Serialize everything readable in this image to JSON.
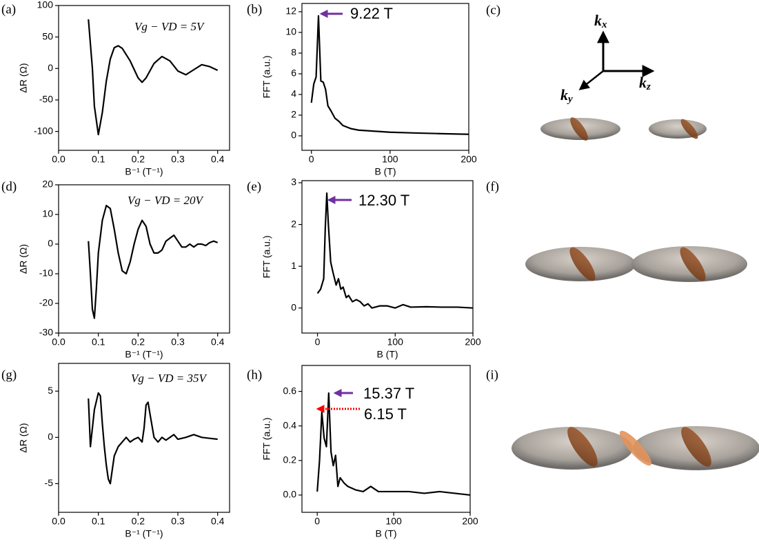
{
  "chart_data": [
    {
      "type": "line",
      "panel_label": "(a)",
      "x_label": "B⁻¹ (T⁻¹)",
      "y_label": "ΔR (Ω)",
      "annotations": [
        {
          "text": "Vg − VD = 5V",
          "color": "#000000"
        }
      ],
      "x": [
        0.075,
        0.085,
        0.09,
        0.1,
        0.11,
        0.12,
        0.13,
        0.14,
        0.15,
        0.16,
        0.18,
        0.2,
        0.21,
        0.22,
        0.24,
        0.26,
        0.28,
        0.3,
        0.32,
        0.34,
        0.36,
        0.38,
        0.4
      ],
      "series": [
        {
          "color": "#000000",
          "values": [
            78,
            0,
            -60,
            -105,
            -70,
            -20,
            15,
            33,
            36,
            32,
            12,
            -15,
            -22,
            -15,
            8,
            19,
            12,
            -4,
            -10,
            -2,
            6,
            3,
            -3
          ]
        }
      ],
      "xlim": [
        0,
        0.43
      ],
      "ylim": [
        -130,
        100
      ],
      "xticks": [
        {
          "value": 0,
          "label": "0.0"
        },
        0.1,
        0.2,
        0.3,
        0.4
      ],
      "yticks": [
        -100,
        -50,
        0,
        50,
        100
      ]
    },
    {
      "type": "line",
      "panel_label": "(b)",
      "x_label": "B (T)",
      "y_label": "FFT (a.u.)",
      "annotations": [
        {
          "text": "9.22 T",
          "color": "#000000"
        }
      ],
      "x": [
        0,
        3,
        6,
        9,
        12,
        15,
        18,
        21,
        25,
        30,
        35,
        40,
        50,
        60,
        80,
        100,
        130,
        160,
        200
      ],
      "series": [
        {
          "color": "#000000",
          "values": [
            3.2,
            5,
            5.7,
            11.6,
            5.3,
            5.2,
            4.5,
            2.9,
            2.4,
            1.7,
            1.4,
            1.0,
            0.7,
            0.55,
            0.45,
            0.35,
            0.28,
            0.22,
            0.15
          ]
        }
      ],
      "xlim": [
        -12,
        200
      ],
      "ylim": [
        -1.4,
        12.8
      ],
      "xticks": [
        0,
        100,
        200
      ],
      "yticks": [
        0,
        2,
        4,
        6,
        8,
        10,
        12
      ]
    },
    {
      "type": "line",
      "panel_label": "(d)",
      "x_label": "B⁻¹ (T⁻¹)",
      "y_label": "ΔR (Ω)",
      "annotations": [
        {
          "text": "Vg − VD = 20V",
          "color": "#000000"
        }
      ],
      "x": [
        0.075,
        0.08,
        0.085,
        0.09,
        0.095,
        0.1,
        0.11,
        0.12,
        0.13,
        0.14,
        0.15,
        0.16,
        0.17,
        0.18,
        0.19,
        0.2,
        0.21,
        0.22,
        0.23,
        0.24,
        0.25,
        0.26,
        0.27,
        0.28,
        0.29,
        0.3,
        0.31,
        0.32,
        0.33,
        0.34,
        0.35,
        0.36,
        0.37,
        0.38,
        0.39,
        0.4
      ],
      "series": [
        {
          "color": "#000000",
          "values": [
            1,
            -10,
            -22,
            -25,
            -15,
            -3,
            8,
            13,
            12,
            5,
            -3,
            -9,
            -10,
            -6,
            0,
            5,
            8,
            6,
            0,
            -3,
            -3,
            -2,
            1,
            2,
            3,
            1,
            -1,
            -1,
            0,
            -1,
            0,
            0,
            -0.5,
            0.5,
            1,
            0.5
          ]
        }
      ],
      "xlim": [
        0,
        0.43
      ],
      "ylim": [
        -30,
        20
      ],
      "xticks": [
        {
          "value": 0,
          "label": "0.0"
        },
        0.1,
        0.2,
        0.3,
        0.4
      ],
      "yticks": [
        -30,
        -20,
        -10,
        0,
        10,
        20
      ]
    },
    {
      "type": "line",
      "panel_label": "(e)",
      "x_label": "B (T)",
      "y_label": "FFT (a.u.)",
      "annotations": [
        {
          "text": "12.30 T",
          "color": "#000000"
        }
      ],
      "x": [
        0,
        4,
        8,
        10,
        12,
        14,
        17,
        20,
        24,
        27,
        30,
        33,
        37,
        40,
        45,
        50,
        55,
        60,
        65,
        70,
        80,
        90,
        100,
        110,
        120,
        140,
        160,
        180,
        200
      ],
      "series": [
        {
          "color": "#000000",
          "values": [
            0.35,
            0.45,
            0.7,
            1.9,
            2.75,
            2.0,
            1.1,
            0.85,
            0.55,
            0.7,
            0.45,
            0.5,
            0.25,
            0.3,
            0.15,
            0.2,
            0.15,
            0.05,
            0.1,
            0.0,
            0.05,
            0.05,
            0.0,
            0.08,
            0.02,
            0.03,
            0.02,
            0.02,
            0.0
          ]
        }
      ],
      "xlim": [
        -20,
        200
      ],
      "ylim": [
        -0.6,
        3.05
      ],
      "xticks": [
        0,
        100,
        200
      ],
      "yticks": [
        0,
        1,
        2,
        3
      ]
    },
    {
      "type": "line",
      "panel_label": "(g)",
      "x_label": "B⁻¹ (T⁻¹)",
      "y_label": "ΔR (Ω)",
      "annotations": [
        {
          "text": "Vg − VD = 35V",
          "color": "#000000"
        }
      ],
      "x": [
        0.075,
        0.08,
        0.085,
        0.09,
        0.1,
        0.105,
        0.11,
        0.115,
        0.12,
        0.125,
        0.13,
        0.135,
        0.14,
        0.15,
        0.16,
        0.17,
        0.18,
        0.19,
        0.2,
        0.21,
        0.215,
        0.22,
        0.225,
        0.23,
        0.24,
        0.25,
        0.26,
        0.27,
        0.28,
        0.29,
        0.3,
        0.32,
        0.34,
        0.36,
        0.38,
        0.4
      ],
      "series": [
        {
          "color": "#000000",
          "values": [
            4.2,
            -1,
            1,
            3,
            4.8,
            4.5,
            1.5,
            -1,
            -3,
            -4.5,
            -5,
            -3.5,
            -2,
            -1,
            -0.5,
            0,
            -0.5,
            -0.2,
            0,
            -0.5,
            1,
            3.5,
            3.8,
            2.5,
            0,
            -0.5,
            0,
            -0.3,
            0,
            0.3,
            -0.2,
            0,
            0.3,
            0,
            -0.1,
            -0.2
          ]
        }
      ],
      "xlim": [
        0,
        0.43
      ],
      "ylim": [
        -8.1,
        8
      ],
      "xticks": [
        {
          "value": 0,
          "label": "0.0"
        },
        0.1,
        0.2,
        0.3,
        0.4
      ],
      "yticks": [
        -5,
        0,
        5
      ]
    },
    {
      "type": "line",
      "panel_label": "(h)",
      "x_label": "B (T)",
      "y_label": "FFT (a.u.)",
      "annotations": [
        {
          "text": "15.37 T",
          "color": "#000000"
        },
        {
          "text": "6.15 T",
          "color": "#ff0000"
        }
      ],
      "x": [
        0,
        3,
        6,
        9,
        12,
        15,
        18,
        21,
        24,
        27,
        30,
        35,
        40,
        45,
        50,
        60,
        70,
        80,
        100,
        120,
        140,
        160,
        180,
        200
      ],
      "series": [
        {
          "color": "#000000",
          "values": [
            0.02,
            0.2,
            0.48,
            0.33,
            0.28,
            0.59,
            0.25,
            0.17,
            0.23,
            0.05,
            0.1,
            0.07,
            0.05,
            0.04,
            0.03,
            0.02,
            0.05,
            0.02,
            0.02,
            0.02,
            0.01,
            0.02,
            0.01,
            0.0
          ]
        }
      ],
      "xlim": [
        -20,
        200
      ],
      "ylim": [
        -0.1,
        0.75
      ],
      "xticks": [
        0,
        100,
        200
      ],
      "yticks": [
        {
          "value": 0,
          "label": "0.0"
        },
        0.2,
        0.4,
        0.6
      ]
    }
  ],
  "illustrations": [
    {
      "panel_label": "(c)",
      "axes": [
        {
          "base": "k",
          "sub": "x"
        },
        {
          "base": "k",
          "sub": "y"
        },
        {
          "base": "k",
          "sub": "z"
        }
      ]
    },
    {
      "panel_label": "(f)"
    },
    {
      "panel_label": "(i)"
    }
  ]
}
